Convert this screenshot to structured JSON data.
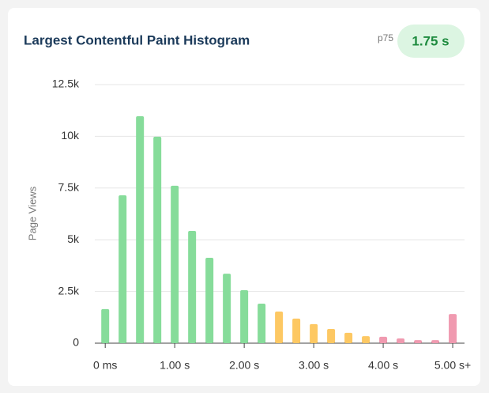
{
  "chart_data": {
    "type": "histogram",
    "title": "Largest Contentful Paint Histogram",
    "badge_label": "p75",
    "badge_value": "1.75 s",
    "y_label": "Page Views",
    "x": [
      0,
      0.25,
      0.5,
      0.75,
      1,
      1.25,
      1.5,
      1.75,
      2,
      2.25,
      2.5,
      2.75,
      3,
      3.25,
      3.5,
      3.75,
      4,
      4.25,
      4.5,
      4.75,
      5
    ],
    "values": [
      1650,
      7150,
      10970,
      9980,
      7610,
      5430,
      4130,
      3360,
      2560,
      1910,
      1530,
      1190,
      920,
      690,
      500,
      340,
      310,
      230,
      150,
      150,
      1410
    ],
    "colors": [
      "#86dc9a",
      "#86dc9a",
      "#86dc9a",
      "#86dc9a",
      "#86dc9a",
      "#86dc9a",
      "#86dc9a",
      "#86dc9a",
      "#86dc9a",
      "#86dc9a",
      "#fdc863",
      "#fdc863",
      "#fdc863",
      "#fdc863",
      "#fdc863",
      "#fdc863",
      "#f09ab0",
      "#f09ab0",
      "#f09ab0",
      "#f09ab0",
      "#f09ab0"
    ],
    "xlim": [
      -0.15,
      5.17
    ],
    "xticks": [
      {
        "value": 0,
        "label": "0 ms"
      },
      {
        "value": 1,
        "label": "1.00 s"
      },
      {
        "value": 2,
        "label": "2.00 s"
      },
      {
        "value": 3,
        "label": "3.00 s"
      },
      {
        "value": 4,
        "label": "4.00 s"
      },
      {
        "value": 5,
        "label": "5.00 s+"
      }
    ],
    "ylim": [
      0,
      12500
    ],
    "yticks": [
      0,
      {
        "value": 2500,
        "label": "2.5k"
      },
      {
        "value": 5000,
        "label": "5k"
      },
      {
        "value": 7500,
        "label": "7.5k"
      },
      {
        "value": 10000,
        "label": "10k"
      },
      {
        "value": 12500,
        "label": "12.5k"
      }
    ],
    "grid": true
  }
}
